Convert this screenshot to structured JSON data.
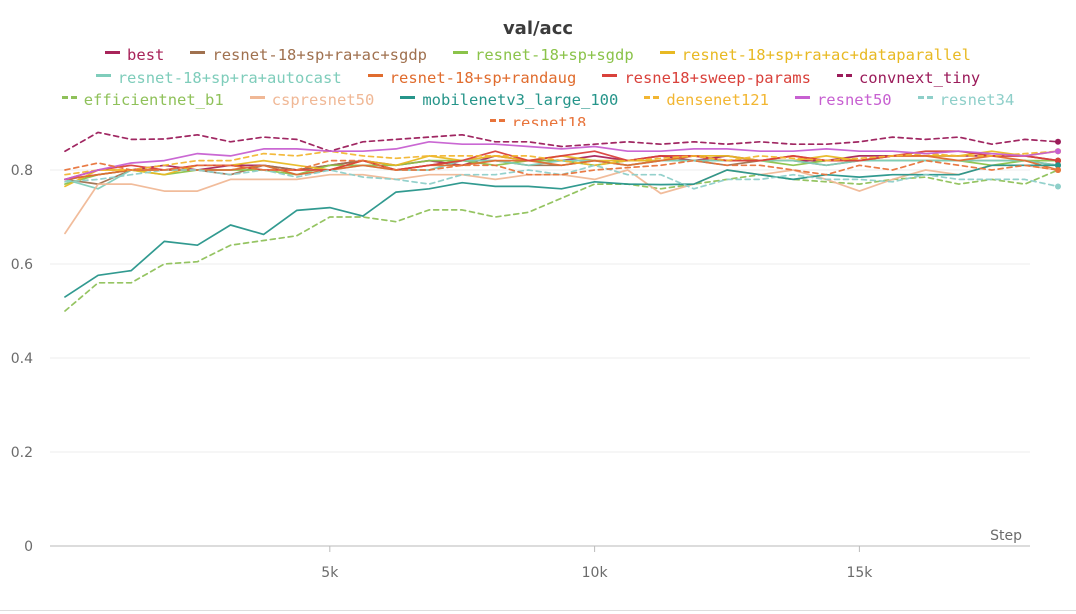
{
  "chart_data": {
    "type": "line",
    "title": "val/acc",
    "xlabel": "Step",
    "ylabel": "",
    "xlim": [
      0,
      18800
    ],
    "ylim": [
      0,
      0.9
    ],
    "xticks": [
      5000,
      10000,
      15000
    ],
    "xtick_labels": [
      "5k",
      "10k",
      "15k"
    ],
    "yticks": [
      0,
      0.2,
      0.4,
      0.6,
      0.8
    ],
    "ytick_labels": [
      "0",
      "0.2",
      "0.4",
      "0.6",
      "0.8"
    ],
    "grid": "horizontal",
    "legend_position": "top",
    "x": [
      0,
      625,
      1250,
      1875,
      2500,
      3125,
      3750,
      4375,
      5000,
      5625,
      6250,
      6875,
      7500,
      8125,
      8750,
      9375,
      10000,
      10625,
      11250,
      11875,
      12500,
      13125,
      13750,
      14375,
      15000,
      15625,
      16250,
      16875,
      17500,
      18125,
      18750
    ],
    "series": [
      {
        "name": "best",
        "color": "#a8245a",
        "dash": "solid",
        "values": [
          0.78,
          0.79,
          0.8,
          0.81,
          0.8,
          0.81,
          0.81,
          0.8,
          0.81,
          0.82,
          0.81,
          0.82,
          0.81,
          0.83,
          0.82,
          0.82,
          0.83,
          0.82,
          0.83,
          0.82,
          0.83,
          0.82,
          0.82,
          0.82,
          0.83,
          0.83,
          0.83,
          0.83,
          0.83,
          0.83,
          0.82
        ]
      },
      {
        "name": "resnet-18+sp+ra+ac+sgdp",
        "color": "#a0714f",
        "dash": "solid",
        "values": [
          0.78,
          0.77,
          0.8,
          0.8,
          0.8,
          0.79,
          0.81,
          0.8,
          0.81,
          0.82,
          0.8,
          0.81,
          0.82,
          0.82,
          0.81,
          0.81,
          0.82,
          0.81,
          0.82,
          0.82,
          0.81,
          0.82,
          0.82,
          0.81,
          0.82,
          0.82,
          0.82,
          0.82,
          0.82,
          0.82,
          0.81
        ]
      },
      {
        "name": "resnet-18+sp+sgdp",
        "color": "#8bc34a",
        "dash": "solid",
        "values": [
          0.77,
          0.79,
          0.8,
          0.79,
          0.8,
          0.8,
          0.8,
          0.79,
          0.81,
          0.81,
          0.81,
          0.82,
          0.82,
          0.81,
          0.82,
          0.82,
          0.81,
          0.82,
          0.82,
          0.82,
          0.82,
          0.82,
          0.81,
          0.82,
          0.82,
          0.82,
          0.82,
          0.82,
          0.81,
          0.82,
          0.82
        ]
      },
      {
        "name": "resnet-18+sp+ra+ac+dataparallel",
        "color": "#e8b923",
        "dash": "solid",
        "values": [
          0.765,
          0.8,
          0.8,
          0.79,
          0.81,
          0.81,
          0.82,
          0.81,
          0.8,
          0.82,
          0.81,
          0.83,
          0.82,
          0.83,
          0.82,
          0.83,
          0.82,
          0.82,
          0.82,
          0.83,
          0.83,
          0.82,
          0.82,
          0.83,
          0.82,
          0.83,
          0.83,
          0.83,
          0.84,
          0.83,
          0.84
        ]
      },
      {
        "name": "resnet-18+sp+ra+autocast",
        "color": "#7fcdbb",
        "dash": "solid",
        "values": [
          0.78,
          0.76,
          0.8,
          0.8,
          0.8,
          0.8,
          0.81,
          0.79,
          0.8,
          0.81,
          0.8,
          0.8,
          0.82,
          0.82,
          0.81,
          0.82,
          0.82,
          0.81,
          0.82,
          0.82,
          0.82,
          0.82,
          0.82,
          0.81,
          0.82,
          0.82,
          0.82,
          0.82,
          0.82,
          0.82,
          0.81
        ]
      },
      {
        "name": "resnet-18+sp+randaug",
        "color": "#e06c2e",
        "dash": "solid",
        "values": [
          0.78,
          0.79,
          0.8,
          0.8,
          0.8,
          0.8,
          0.81,
          0.79,
          0.8,
          0.81,
          0.8,
          0.81,
          0.81,
          0.82,
          0.82,
          0.81,
          0.82,
          0.81,
          0.82,
          0.83,
          0.82,
          0.82,
          0.83,
          0.82,
          0.82,
          0.83,
          0.83,
          0.82,
          0.83,
          0.82,
          0.8
        ]
      },
      {
        "name": "resne18+sweep-params",
        "color": "#d9413b",
        "dash": "solid",
        "values": [
          0.78,
          0.8,
          0.81,
          0.8,
          0.81,
          0.81,
          0.8,
          0.8,
          0.8,
          0.82,
          0.8,
          0.81,
          0.82,
          0.84,
          0.82,
          0.83,
          0.84,
          0.82,
          0.83,
          0.83,
          0.82,
          0.82,
          0.83,
          0.82,
          0.82,
          0.83,
          0.84,
          0.84,
          0.83,
          0.83,
          0.82
        ]
      },
      {
        "name": "convnext_tiny",
        "color": "#9b1b5a",
        "dash": "dashed",
        "values": [
          0.84,
          0.88,
          0.865,
          0.866,
          0.875,
          0.86,
          0.87,
          0.865,
          0.84,
          0.86,
          0.865,
          0.87,
          0.875,
          0.86,
          0.86,
          0.85,
          0.855,
          0.86,
          0.855,
          0.86,
          0.855,
          0.86,
          0.855,
          0.855,
          0.86,
          0.87,
          0.865,
          0.87,
          0.855,
          0.865,
          0.86
        ]
      },
      {
        "name": "efficientnet_b1",
        "color": "#8fc15a",
        "dash": "dashed",
        "values": [
          0.5,
          0.56,
          0.56,
          0.6,
          0.605,
          0.64,
          0.65,
          0.66,
          0.7,
          0.7,
          0.69,
          0.715,
          0.715,
          0.7,
          0.71,
          0.74,
          0.77,
          0.77,
          0.76,
          0.77,
          0.78,
          0.79,
          0.78,
          0.775,
          0.77,
          0.78,
          0.785,
          0.77,
          0.78,
          0.77,
          0.8
        ]
      },
      {
        "name": "cspresnet50",
        "color": "#f0b896",
        "dash": "solid",
        "values": [
          0.665,
          0.77,
          0.77,
          0.755,
          0.755,
          0.78,
          0.78,
          0.78,
          0.79,
          0.79,
          0.78,
          0.79,
          0.79,
          0.78,
          0.79,
          0.79,
          0.78,
          0.8,
          0.75,
          0.77,
          0.8,
          0.79,
          0.8,
          0.78,
          0.755,
          0.78,
          0.8,
          0.79,
          0.81,
          0.81,
          0.8
        ]
      },
      {
        "name": "mobilenetv3_large_100",
        "color": "#26958a",
        "dash": "solid",
        "values": [
          0.53,
          0.576,
          0.586,
          0.648,
          0.64,
          0.683,
          0.663,
          0.714,
          0.72,
          0.702,
          0.753,
          0.76,
          0.773,
          0.765,
          0.765,
          0.76,
          0.775,
          0.77,
          0.769,
          0.77,
          0.8,
          0.79,
          0.78,
          0.79,
          0.785,
          0.79,
          0.79,
          0.79,
          0.81,
          0.81,
          0.81
        ]
      },
      {
        "name": "densenet121",
        "color": "#f2b632",
        "dash": "dashed",
        "values": [
          0.79,
          0.8,
          0.8,
          0.81,
          0.82,
          0.82,
          0.835,
          0.83,
          0.84,
          0.83,
          0.825,
          0.83,
          0.83,
          0.83,
          0.83,
          0.82,
          0.81,
          0.82,
          0.825,
          0.83,
          0.82,
          0.83,
          0.825,
          0.82,
          0.825,
          0.83,
          0.835,
          0.83,
          0.83,
          0.835,
          0.84
        ]
      },
      {
        "name": "resnet50",
        "color": "#c760d1",
        "dash": "solid",
        "values": [
          0.78,
          0.8,
          0.815,
          0.82,
          0.835,
          0.83,
          0.845,
          0.845,
          0.84,
          0.84,
          0.845,
          0.86,
          0.855,
          0.855,
          0.85,
          0.845,
          0.85,
          0.84,
          0.84,
          0.845,
          0.845,
          0.84,
          0.84,
          0.845,
          0.84,
          0.84,
          0.835,
          0.84,
          0.835,
          0.83,
          0.84
        ]
      },
      {
        "name": "resnet34",
        "color": "#8ecfc9",
        "dash": "dashed",
        "values": [
          0.775,
          0.78,
          0.79,
          0.8,
          0.8,
          0.79,
          0.8,
          0.785,
          0.8,
          0.785,
          0.78,
          0.77,
          0.79,
          0.79,
          0.8,
          0.79,
          0.81,
          0.79,
          0.79,
          0.76,
          0.78,
          0.78,
          0.79,
          0.78,
          0.78,
          0.775,
          0.79,
          0.78,
          0.78,
          0.78,
          0.765
        ]
      },
      {
        "name": "resnet18",
        "color": "#e8743b",
        "dash": "dashed",
        "values": [
          0.8,
          0.815,
          0.8,
          0.8,
          0.81,
          0.81,
          0.8,
          0.8,
          0.82,
          0.82,
          0.8,
          0.8,
          0.81,
          0.81,
          0.79,
          0.79,
          0.8,
          0.805,
          0.81,
          0.82,
          0.81,
          0.81,
          0.8,
          0.79,
          0.81,
          0.8,
          0.82,
          0.81,
          0.8,
          0.81,
          0.8
        ]
      }
    ]
  }
}
